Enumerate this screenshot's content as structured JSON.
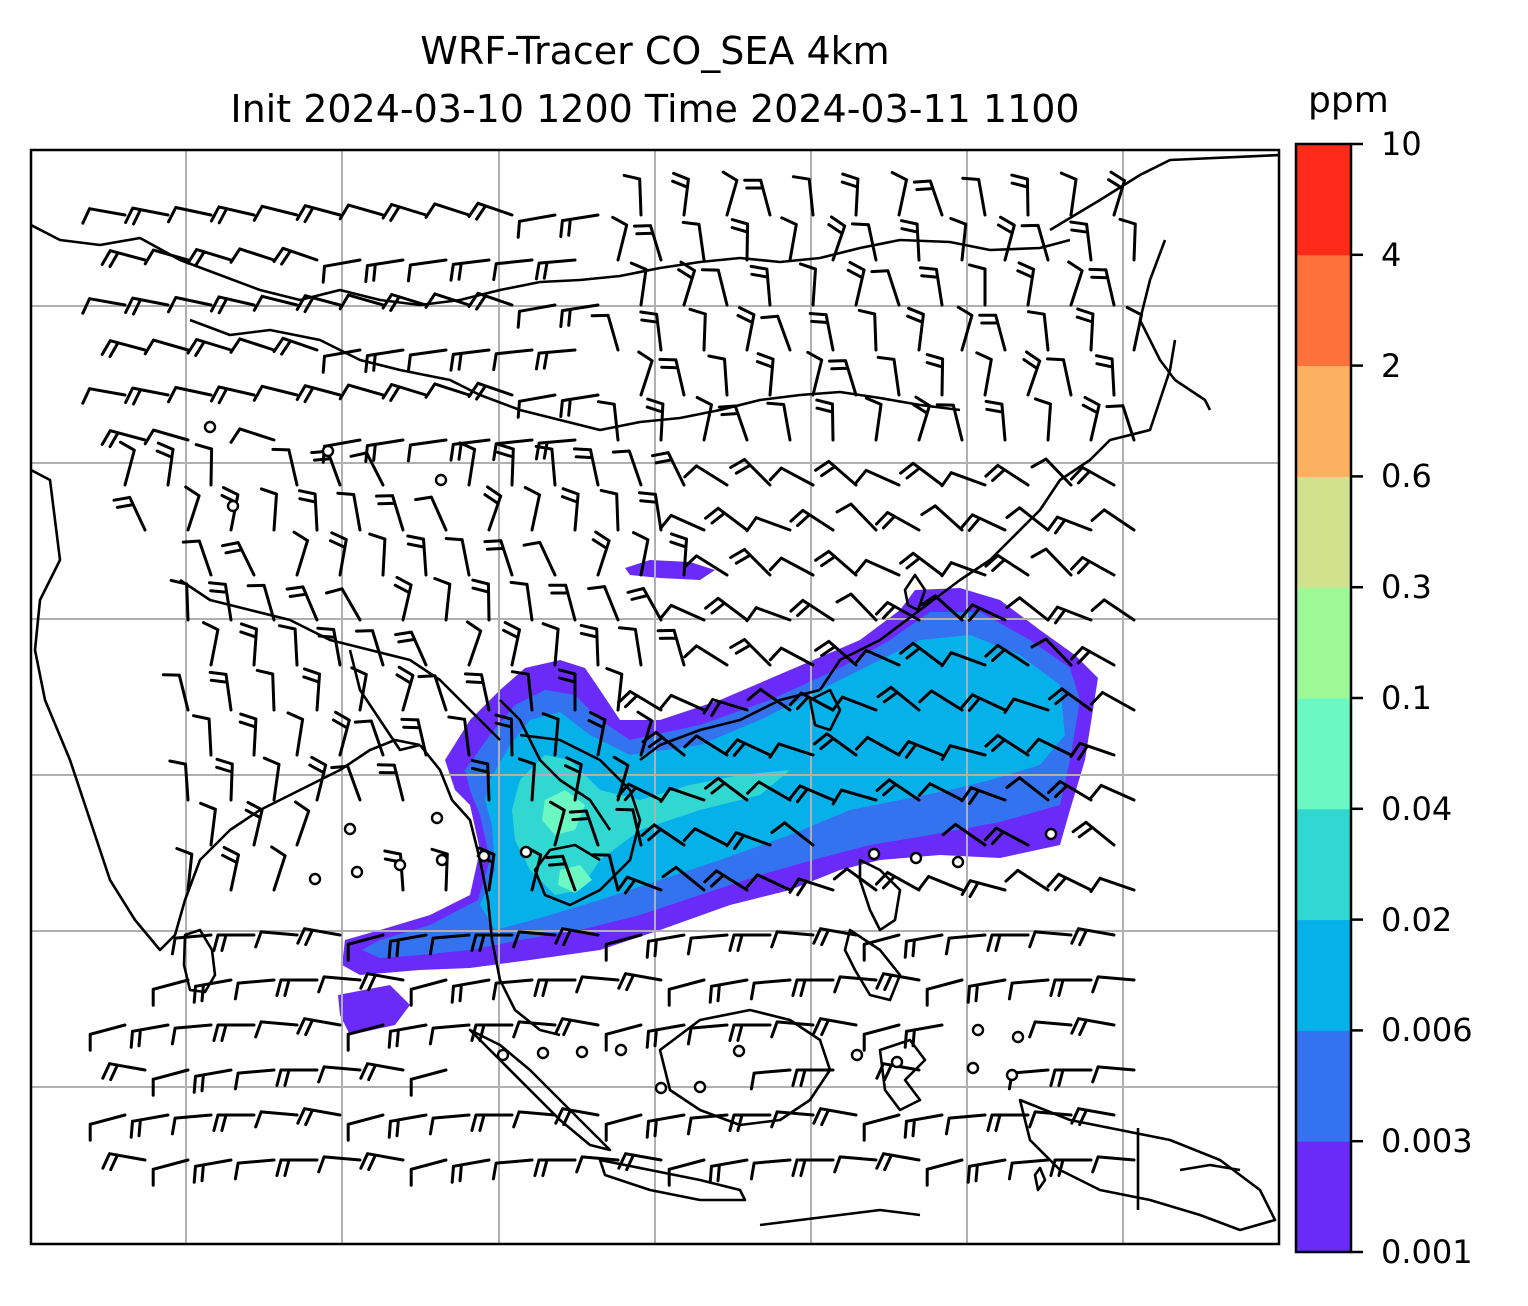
{
  "title": {
    "line1": "WRF-Tracer CO_SEA 4km",
    "line2": "Init 2024-03-10 1200 Time 2024-03-11 1100"
  },
  "colorbar": {
    "unit": "ppm",
    "ticks": [
      "0.001",
      "0.003",
      "0.006",
      "0.02",
      "0.04",
      "0.1",
      "0.3",
      "0.6",
      "2",
      "4",
      "10"
    ],
    "colors": [
      "#6a2bf8",
      "#3473f0",
      "#06b1ea",
      "#31d8d2",
      "#6cf8c2",
      "#9df896",
      "#d1e28d",
      "#fcb161",
      "#ff713b",
      "#ff2a1a"
    ]
  },
  "map": {
    "gridlines": true,
    "coastlines": true,
    "wind_barbs": true,
    "calm_circles": true
  }
}
